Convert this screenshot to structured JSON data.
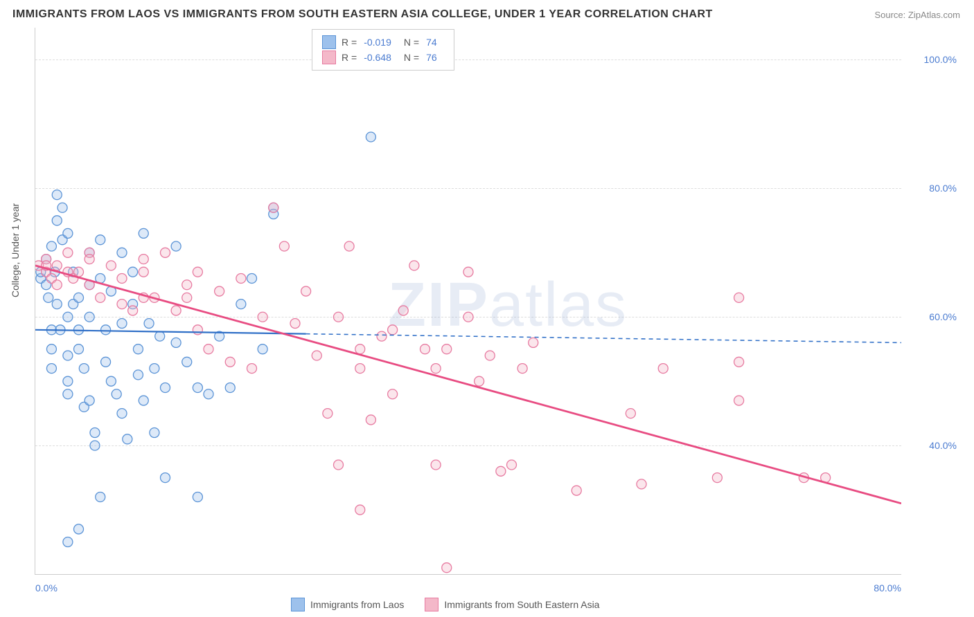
{
  "title": "IMMIGRANTS FROM LAOS VS IMMIGRANTS FROM SOUTH EASTERN ASIA COLLEGE, UNDER 1 YEAR CORRELATION CHART",
  "source": "Source: ZipAtlas.com",
  "ylabel": "College, Under 1 year",
  "watermark_a": "ZIP",
  "watermark_b": "atlas",
  "chart": {
    "type": "scatter",
    "xlim": [
      0,
      80
    ],
    "ylim": [
      20,
      105
    ],
    "xticks": [
      {
        "v": 0,
        "label": "0.0%"
      },
      {
        "v": 80,
        "label": "80.0%"
      }
    ],
    "yticks": [
      {
        "v": 40,
        "label": "40.0%"
      },
      {
        "v": 60,
        "label": "60.0%"
      },
      {
        "v": 80,
        "label": "80.0%"
      },
      {
        "v": 100,
        "label": "100.0%"
      }
    ],
    "gridlines_y": [
      40,
      60,
      80,
      100
    ],
    "background_color": "#ffffff",
    "grid_color": "#dddddd",
    "marker_radius": 7,
    "marker_fill_opacity": 0.35,
    "marker_stroke_width": 1.3,
    "series": [
      {
        "name": "Immigrants from Laos",
        "color_fill": "#9dc1ec",
        "color_stroke": "#5a93d6",
        "R": "-0.019",
        "N": "74",
        "trend": {
          "x1": 0,
          "y1": 58,
          "x2": 80,
          "y2": 56,
          "solid_until_x": 25,
          "stroke": "#2f6fc7",
          "width": 2.2
        },
        "points": [
          [
            0.5,
            66
          ],
          [
            0.5,
            67
          ],
          [
            1,
            65
          ],
          [
            1,
            69
          ],
          [
            1.2,
            63
          ],
          [
            1.5,
            58
          ],
          [
            1.5,
            55
          ],
          [
            1.5,
            52
          ],
          [
            1.5,
            71
          ],
          [
            2,
            79
          ],
          [
            2,
            75
          ],
          [
            2.5,
            77
          ],
          [
            2.5,
            72
          ],
          [
            3,
            60
          ],
          [
            3,
            54
          ],
          [
            3,
            50
          ],
          [
            3,
            48
          ],
          [
            3,
            73
          ],
          [
            3.5,
            67
          ],
          [
            3.5,
            62
          ],
          [
            4,
            55
          ],
          [
            4,
            63
          ],
          [
            4,
            58
          ],
          [
            4.5,
            52
          ],
          [
            4.5,
            46
          ],
          [
            5,
            70
          ],
          [
            5,
            65
          ],
          [
            5,
            60
          ],
          [
            5,
            47
          ],
          [
            5.5,
            40
          ],
          [
            5.5,
            42
          ],
          [
            6,
            72
          ],
          [
            6,
            66
          ],
          [
            6.5,
            58
          ],
          [
            6.5,
            53
          ],
          [
            7,
            50
          ],
          [
            7,
            64
          ],
          [
            7.5,
            48
          ],
          [
            8,
            70
          ],
          [
            8,
            59
          ],
          [
            8,
            45
          ],
          [
            8.5,
            41
          ],
          [
            9,
            67
          ],
          [
            9,
            62
          ],
          [
            9.5,
            55
          ],
          [
            9.5,
            51
          ],
          [
            10,
            73
          ],
          [
            10,
            47
          ],
          [
            10.5,
            59
          ],
          [
            11,
            52
          ],
          [
            11,
            42
          ],
          [
            11.5,
            57
          ],
          [
            12,
            49
          ],
          [
            12,
            35
          ],
          [
            13,
            71
          ],
          [
            13,
            56
          ],
          [
            14,
            53
          ],
          [
            15,
            49
          ],
          [
            15,
            32
          ],
          [
            16,
            48
          ],
          [
            17,
            57
          ],
          [
            18,
            49
          ],
          [
            19,
            62
          ],
          [
            20,
            66
          ],
          [
            21,
            55
          ],
          [
            22,
            77
          ],
          [
            22,
            76
          ],
          [
            4,
            27
          ],
          [
            6,
            32
          ],
          [
            31,
            88
          ],
          [
            3,
            25
          ],
          [
            2,
            62
          ],
          [
            1.8,
            67
          ],
          [
            2.3,
            58
          ]
        ]
      },
      {
        "name": "Immigrants from South Eastern Asia",
        "color_fill": "#f4b8c9",
        "color_stroke": "#e77aa0",
        "R": "-0.648",
        "N": "76",
        "trend": {
          "x1": 0,
          "y1": 68,
          "x2": 80,
          "y2": 31,
          "stroke": "#e84c82",
          "width": 2.8
        },
        "points": [
          [
            0.3,
            68
          ],
          [
            1,
            69
          ],
          [
            1,
            67
          ],
          [
            1.5,
            66
          ],
          [
            2,
            68
          ],
          [
            2,
            65
          ],
          [
            3,
            67
          ],
          [
            3.5,
            66
          ],
          [
            4,
            67
          ],
          [
            5,
            70
          ],
          [
            5,
            65
          ],
          [
            6,
            63
          ],
          [
            7,
            68
          ],
          [
            8,
            62
          ],
          [
            8,
            66
          ],
          [
            9,
            61
          ],
          [
            10,
            63
          ],
          [
            10,
            67
          ],
          [
            11,
            63
          ],
          [
            12,
            70
          ],
          [
            13,
            61
          ],
          [
            14,
            65
          ],
          [
            15,
            58
          ],
          [
            15,
            67
          ],
          [
            16,
            55
          ],
          [
            17,
            64
          ],
          [
            18,
            53
          ],
          [
            19,
            66
          ],
          [
            20,
            52
          ],
          [
            21,
            60
          ],
          [
            22,
            77
          ],
          [
            23,
            71
          ],
          [
            24,
            59
          ],
          [
            25,
            64
          ],
          [
            26,
            54
          ],
          [
            27,
            45
          ],
          [
            28,
            60
          ],
          [
            29,
            71
          ],
          [
            30,
            52
          ],
          [
            30,
            55
          ],
          [
            31,
            44
          ],
          [
            32,
            57
          ],
          [
            33,
            48
          ],
          [
            34,
            61
          ],
          [
            35,
            68
          ],
          [
            36,
            55
          ],
          [
            37,
            52
          ],
          [
            37,
            37
          ],
          [
            38,
            55
          ],
          [
            38,
            21
          ],
          [
            40,
            67
          ],
          [
            41,
            50
          ],
          [
            42,
            54
          ],
          [
            43,
            36
          ],
          [
            44,
            37
          ],
          [
            45,
            52
          ],
          [
            46,
            56
          ],
          [
            28,
            37
          ],
          [
            30,
            30
          ],
          [
            50,
            33
          ],
          [
            55,
            45
          ],
          [
            56,
            34
          ],
          [
            58,
            52
          ],
          [
            65,
            63
          ],
          [
            65,
            47
          ],
          [
            65,
            53
          ],
          [
            63,
            35
          ],
          [
            71,
            35
          ],
          [
            73,
            35
          ],
          [
            40,
            60
          ],
          [
            33,
            58
          ],
          [
            14,
            63
          ],
          [
            10,
            69
          ],
          [
            5,
            69
          ],
          [
            3,
            70
          ],
          [
            1,
            68
          ]
        ]
      }
    ]
  },
  "legend_top": {
    "r_label": "R =",
    "n_label": "N ="
  }
}
